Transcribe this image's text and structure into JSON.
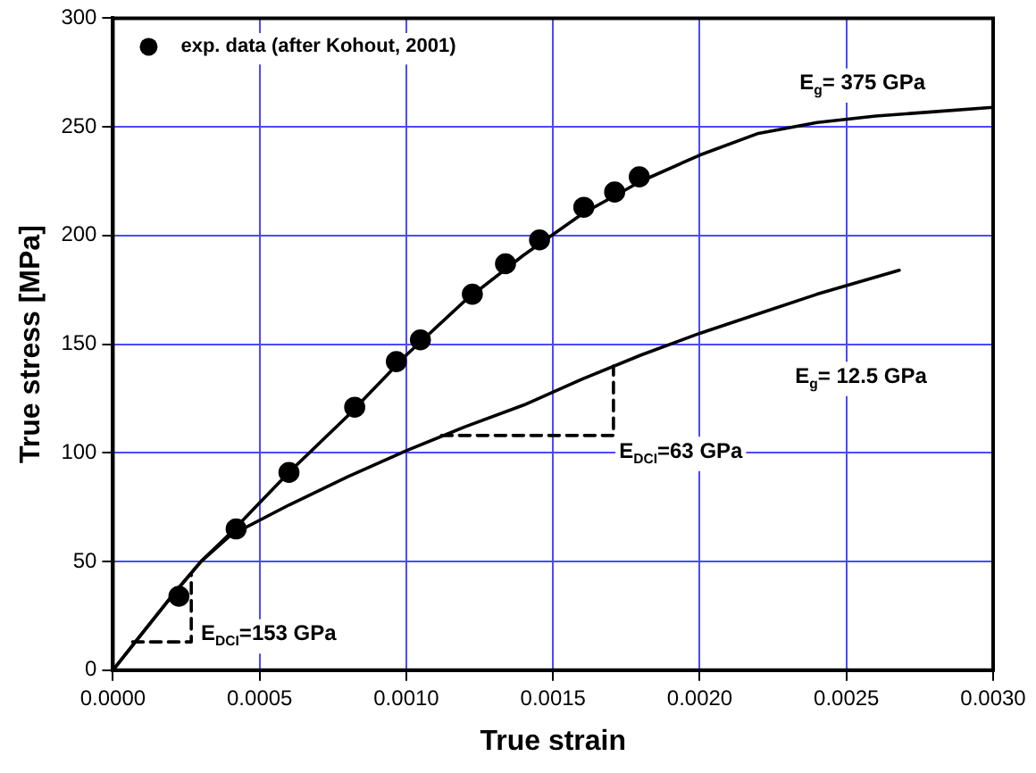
{
  "chart_data": {
    "type": "line",
    "xlabel": "True strain",
    "ylabel": "True stress [MPa]",
    "xlim": [
      0,
      0.003
    ],
    "ylim": [
      0,
      300
    ],
    "xticks": [
      {
        "value": 0,
        "label": "0.0000"
      },
      {
        "value": 0.0005,
        "label": "0.0005"
      },
      {
        "value": 0.001,
        "label": "0.0010"
      },
      {
        "value": 0.0015,
        "label": "0.0015"
      },
      {
        "value": 0.002,
        "label": "0.0020"
      },
      {
        "value": 0.0025,
        "label": "0.0025"
      },
      {
        "value": 0.003,
        "label": "0.0030"
      }
    ],
    "yticks": [
      0,
      50,
      100,
      150,
      200,
      250,
      300
    ],
    "grid": true,
    "legend": "top left",
    "marker": "none",
    "line_style": "solid",
    "series": [
      {
        "name": "exp. data (after Kohout, 2001)",
        "type": "scatter",
        "marker": "circle",
        "color": "#000000",
        "x": [
          0.000225,
          0.00042,
          0.0006,
          0.000824,
          0.000966,
          0.001048,
          0.001225,
          0.001338,
          0.001454,
          0.001605,
          0.00171,
          0.001794
        ],
        "values": [
          34,
          65,
          91,
          121,
          142,
          152,
          173,
          187,
          198,
          213,
          220,
          227
        ]
      },
      {
        "type": "line",
        "color": "#000000",
        "x": [
          0,
          0.0001,
          0.0002,
          0.0003,
          0.0004,
          0.0005,
          0.0006,
          0.0008,
          0.001,
          0.0012,
          0.0014,
          0.0016,
          0.0018,
          0.002,
          0.0022,
          0.0024,
          0.0026,
          0.0028,
          0.003
        ],
        "values": [
          0,
          17,
          34,
          50,
          63,
          77,
          91,
          117,
          145,
          170,
          191,
          210,
          225,
          237,
          247,
          252,
          255,
          257,
          259
        ]
      },
      {
        "type": "line",
        "color": "#000000",
        "x": [
          0,
          0.0001,
          0.0002,
          0.0003,
          0.0004,
          0.0006,
          0.0008,
          0.001,
          0.0012,
          0.0014,
          0.0016,
          0.0018,
          0.002,
          0.0022,
          0.0024,
          0.00268
        ],
        "values": [
          0,
          17,
          34,
          50,
          62,
          76,
          89,
          101,
          112,
          122,
          134,
          145,
          155,
          164,
          173,
          184
        ]
      },
      {
        "type": "line",
        "line_style": "dashed",
        "color": "#000000",
        "x": [
          6.7e-05,
          0.000267,
          0.000267
        ],
        "values": [
          13,
          13,
          44
        ]
      },
      {
        "type": "line",
        "line_style": "dashed",
        "color": "#000000",
        "x": [
          0.00112,
          0.001706,
          0.001706
        ],
        "values": [
          108,
          108,
          140
        ]
      }
    ],
    "annotations": [
      "E$_{g}$= 375 GPa",
      "E$_{g}$= 12.5 GPa",
      "E$_{DCI}$=63 GPa",
      "E$_{DCI}$=153 GPa"
    ]
  }
}
